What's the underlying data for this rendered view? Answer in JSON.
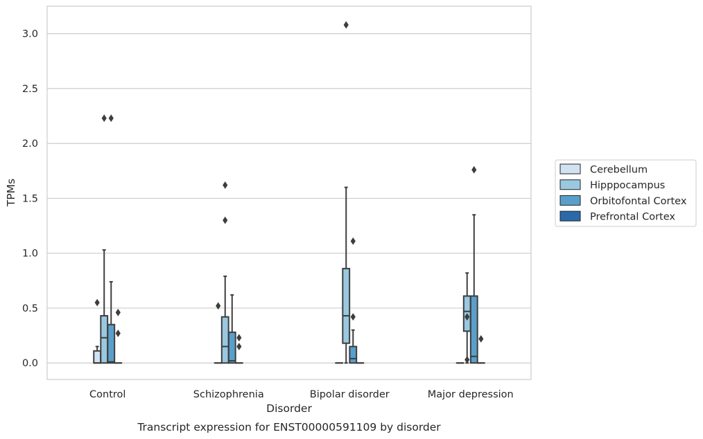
{
  "chart_data": {
    "type": "box",
    "caption": "Transcript expression for ENST00000591109 by disorder",
    "xlabel": "Disorder",
    "ylabel": "TPMs",
    "ylim": [
      -0.15,
      3.25
    ],
    "yticks": [
      0.0,
      0.5,
      1.0,
      1.5,
      2.0,
      2.5,
      3.0
    ],
    "ytick_labels": [
      "0.0",
      "0.5",
      "1.0",
      "1.5",
      "2.0",
      "2.5",
      "3.0"
    ],
    "categories": [
      "Control",
      "Schizophrenia",
      "Bipolar disorder",
      "Major depression"
    ],
    "grid": "horizontal",
    "legend_position": "right",
    "series": [
      {
        "name": "Cerebellum",
        "color": "#d1e2f2",
        "boxes": [
          {
            "q1": 0.0,
            "median": 0.0,
            "q3": 0.11,
            "whisker_low": 0.0,
            "whisker_high": 0.15,
            "outliers": [
              0.55
            ]
          },
          {
            "q1": 0.0,
            "median": 0.0,
            "q3": 0.0,
            "whisker_low": 0.0,
            "whisker_high": 0.0,
            "outliers": [
              0.52
            ]
          },
          {
            "q1": 0.0,
            "median": 0.0,
            "q3": 0.0,
            "whisker_low": 0.0,
            "whisker_high": 0.0,
            "outliers": []
          },
          {
            "q1": 0.0,
            "median": 0.0,
            "q3": 0.0,
            "whisker_low": 0.0,
            "whisker_high": 0.0,
            "outliers": []
          }
        ]
      },
      {
        "name": "Hipppocampus",
        "color": "#9ac8e0",
        "boxes": [
          {
            "q1": 0.0,
            "median": 0.23,
            "q3": 0.43,
            "whisker_low": 0.0,
            "whisker_high": 1.03,
            "outliers": [
              2.23
            ]
          },
          {
            "q1": 0.0,
            "median": 0.15,
            "q3": 0.42,
            "whisker_low": 0.0,
            "whisker_high": 0.79,
            "outliers": [
              1.3,
              1.62
            ]
          },
          {
            "q1": 0.18,
            "median": 0.43,
            "q3": 0.86,
            "whisker_low": 0.0,
            "whisker_high": 1.6,
            "outliers": [
              3.08
            ]
          },
          {
            "q1": 0.29,
            "median": 0.47,
            "q3": 0.61,
            "whisker_low": 0.0,
            "whisker_high": 0.82,
            "outliers": [
              0.03,
              0.42
            ]
          }
        ]
      },
      {
        "name": "Orbitofontal Cortex",
        "color": "#5a9fcb",
        "boxes": [
          {
            "q1": 0.0,
            "median": 0.01,
            "q3": 0.35,
            "whisker_low": 0.0,
            "whisker_high": 0.74,
            "outliers": [
              2.23
            ]
          },
          {
            "q1": 0.0,
            "median": 0.02,
            "q3": 0.28,
            "whisker_low": 0.0,
            "whisker_high": 0.62,
            "outliers": []
          },
          {
            "q1": 0.0,
            "median": 0.04,
            "q3": 0.15,
            "whisker_low": 0.0,
            "whisker_high": 0.3,
            "outliers": [
              0.42,
              1.11
            ]
          },
          {
            "q1": 0.0,
            "median": 0.06,
            "q3": 0.61,
            "whisker_low": 0.0,
            "whisker_high": 1.35,
            "outliers": [
              1.76
            ]
          }
        ]
      },
      {
        "name": "Prefrontal Cortex",
        "color": "#2a6aab",
        "boxes": [
          {
            "q1": 0.0,
            "median": 0.0,
            "q3": 0.0,
            "whisker_low": 0.0,
            "whisker_high": 0.0,
            "outliers": [
              0.27,
              0.46
            ]
          },
          {
            "q1": 0.0,
            "median": 0.0,
            "q3": 0.0,
            "whisker_low": 0.0,
            "whisker_high": 0.0,
            "outliers": [
              0.15,
              0.23
            ]
          },
          {
            "q1": 0.0,
            "median": 0.0,
            "q3": 0.0,
            "whisker_low": 0.0,
            "whisker_high": 0.0,
            "outliers": []
          },
          {
            "q1": 0.0,
            "median": 0.0,
            "q3": 0.0,
            "whisker_low": 0.0,
            "whisker_high": 0.0,
            "outliers": [
              0.22
            ]
          }
        ]
      }
    ]
  }
}
